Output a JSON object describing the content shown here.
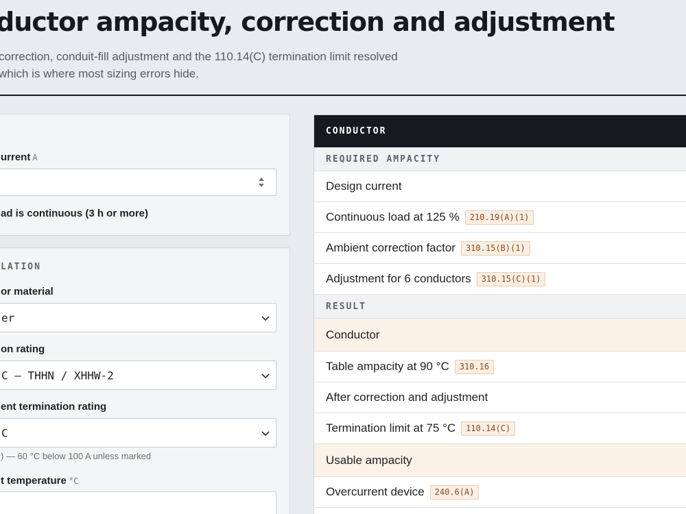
{
  "header": {
    "title": "ductor ampacity, correction and adjustment",
    "subtitle_line1": "correction, conduit-fill adjustment and the 110.14(C) termination limit resolved",
    "subtitle_line2": "which is where most sizing errors hide."
  },
  "load": {
    "current_label": "urrent",
    "current_unit": "A",
    "current_value": "",
    "continuous_label": "ad is continuous (3 h or more)"
  },
  "installation": {
    "section_label": "LATION",
    "material_label": "or material",
    "material_value": "er",
    "insulation_label": "on rating",
    "insulation_value": "C — THHN / XHHW-2",
    "termination_label": "ent termination rating",
    "termination_value": "C",
    "termination_hint": ") — 60 °C below 100 A unless marked",
    "ambient_label": "t temperature",
    "ambient_unit": "°C",
    "ambient_value": ""
  },
  "results": {
    "header": "CONDUCTOR",
    "required_section": "REQUIRED AMPACITY",
    "result_section": "RESULT",
    "rows": {
      "design_current": "Design current",
      "continuous_load": "Continuous load at 125 %",
      "continuous_ref": "210.19(A)(1)",
      "ambient_factor": "Ambient correction factor",
      "ambient_ref": "310.15(B)(1)",
      "adjustment": "Adjustment for 6 conductors",
      "adjustment_ref": "310.15(C)(1)",
      "conductor": "Conductor",
      "table_ampacity": "Table ampacity at 90 °C",
      "table_ref": "310.16",
      "after_correction": "After correction and adjustment",
      "termination_limit": "Termination limit at 75 °C",
      "termination_ref": "110.14(C)",
      "usable": "Usable ampacity",
      "overcurrent": "Overcurrent device",
      "overcurrent_ref": "240.6(A)"
    }
  },
  "colors": {
    "accent_dark": "#16191e",
    "highlight_row": "#fcf1e6",
    "code_ref": "#8a4a22"
  },
  "icons": {
    "select": "chevron-down-icon",
    "number": "spinner-icon"
  }
}
